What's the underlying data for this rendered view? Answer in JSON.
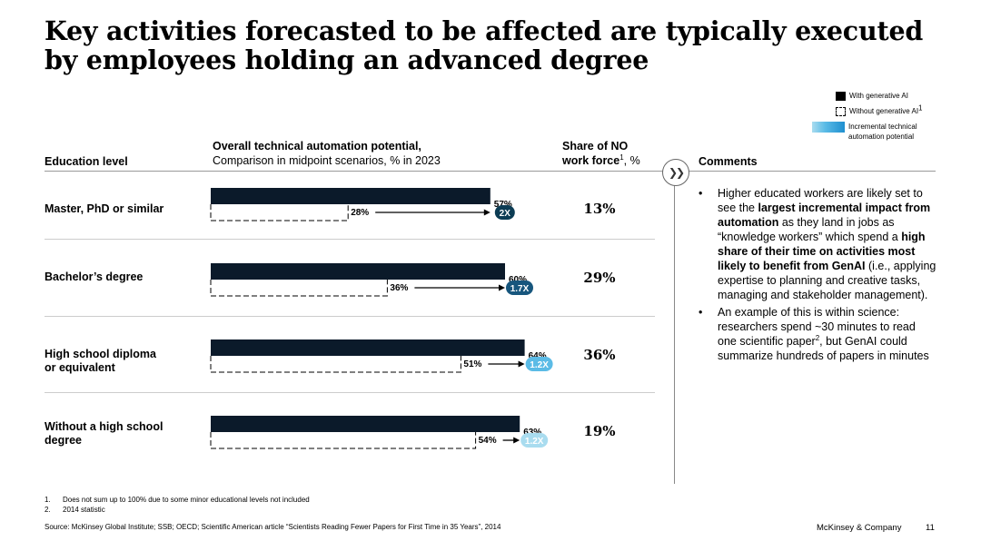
{
  "title": "Key activities forecasted to be affected are typically executed by employees holding an advanced degree",
  "legend": {
    "with": "With generative AI",
    "without": "Without generative AI",
    "without_sup": "1",
    "incremental": "Incremental technical automation potential"
  },
  "headers": {
    "education": "Education level",
    "automation_title": "Overall technical automation potential,",
    "automation_sub": "Comparison in midpoint scenarios, % in 2023",
    "share_line1": "Share of NO",
    "share_line2": "work force",
    "share_sup": "1",
    "share_unit": ", %",
    "comments": "Comments",
    "circle_icon": "double-chevron-right-icon"
  },
  "chart_data": {
    "type": "bar",
    "title": "Overall technical automation potential, Comparison in midpoint scenarios, % in 2023",
    "categories": [
      "Master, PhD or similar",
      "Bachelor’s degree",
      "High school diploma or equivalent",
      "Without a high school degree"
    ],
    "series": [
      {
        "name": "With generative AI",
        "values": [
          57,
          60,
          64,
          63
        ]
      },
      {
        "name": "Without generative AI",
        "values": [
          28,
          36,
          51,
          54
        ]
      }
    ],
    "value_labels_with": [
      "57%",
      "60%",
      "64%",
      "63%"
    ],
    "value_labels_without": [
      "28%",
      "36%",
      "51%",
      "54%"
    ],
    "multipliers": [
      "2X",
      "1.7X",
      "1.2X",
      "1.2X"
    ],
    "multiplier_colors": [
      "#0c3c54",
      "#17567d",
      "#5bbbe6",
      "#a9dcef"
    ],
    "xlim": [
      0,
      100
    ],
    "share_of_workforce": [
      "13%",
      "29%",
      "36%",
      "19%"
    ]
  },
  "rows": [
    {
      "label": "Master, PhD or similar",
      "share": "13%"
    },
    {
      "label": "Bachelor’s degree",
      "share": "29%"
    },
    {
      "label_line1": "High school diploma",
      "label_line2": "or equivalent",
      "share": "36%"
    },
    {
      "label_line1": "Without a high school",
      "label_line2": "degree",
      "share": "19%"
    }
  ],
  "comments": {
    "b1_p1": "Higher educated workers are likely set to see the ",
    "b1_b1": "largest incremental impact from automation",
    "b1_p2": " as they land in jobs as “knowledge workers” which spend a ",
    "b1_b2": "high share of their time on activities most likely to benefit from GenAI",
    "b1_p3": " (i.e., applying expertise to planning and creative tasks, managing and stakeholder management).",
    "b2_p1": "An example of this is within science: researchers spend ~30 minutes to read one scientific paper",
    "b2_sup": "2",
    "b2_p2": ", but GenAI could summarize hundreds of papers in minutes"
  },
  "footnotes": [
    {
      "n": "1.",
      "text": "Does not sum up to 100% due to some minor educational levels not included"
    },
    {
      "n": "2.",
      "text": "2014 statistic"
    }
  ],
  "source": "Source: McKinsey Global Institute; SSB; OECD; Scientific American article “Scientists Reading Fewer Papers for First Time in 35 Years”, 2014",
  "brand": "McKinsey & Company",
  "page": "11",
  "colors": {
    "bar": "#0b1a2a",
    "accent": "#1f8fcf"
  }
}
